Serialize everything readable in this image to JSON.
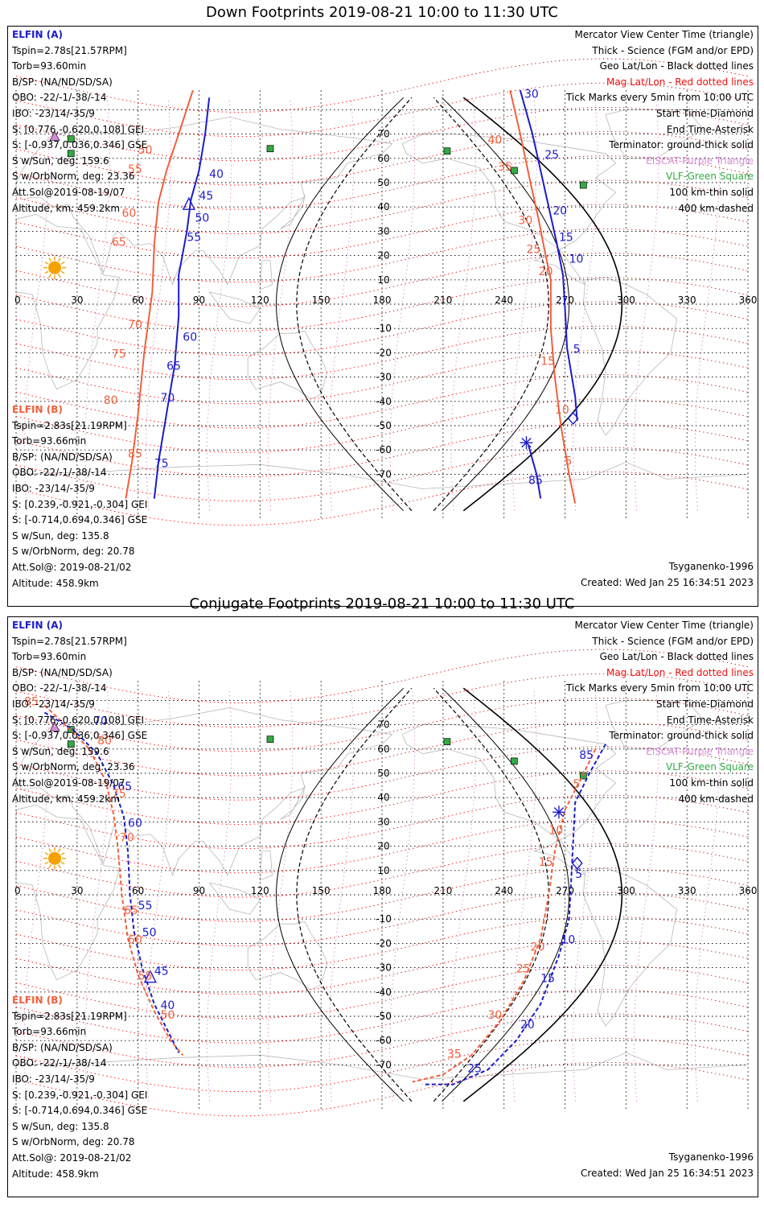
{
  "down": {
    "title": "Down Footprints 2019-08-21 10:00 to 11:30 UTC",
    "elfin_a": {
      "name": "ELFIN (A)",
      "lines": [
        "Tspin=2.78s[21.57RPM]",
        "Torb=93.60min",
        "B/SP: (NA/ND/SD/SA)",
        "OBO: -22/-1/-38/-14",
        "IBO: -23/14/-35/9",
        "S: [0.776,-0.620,0.108] GEI",
        "S: [-0.937,0.036,0.346] GSE",
        "S w/Sun, deg: 159.6",
        "S w/OrbNorm, deg: 23.36",
        "Att.Sol@2019-08-19/07",
        "Altitude, km: 459.2km"
      ]
    },
    "elfin_b": {
      "name": "ELFIN (B)",
      "lines": [
        "Tspin=2.83s[21.19RPM]",
        "Torb=93.66min",
        "B/SP: (NA/ND/SD/SA)",
        "OBO: -22/-1/-38/-14",
        "IBO: -23/14/-35/9",
        "S: [0.239,-0.921,-0.304] GEI",
        "S: [-0.714,0.694,0.346] GSE",
        "S w/Sun, deg: 135.8",
        "S w/OrbNorm, deg: 20.78",
        "Att.Sol@: 2019-08-21/02",
        "Altitude: 458.9km"
      ]
    },
    "footer_left": "Tsyganenko-1996",
    "footer_created": "Created: Wed Jan 25 16:34:51 2023",
    "blue_labels": [
      {
        "t": "40",
        "x": 95,
        "y": 52
      },
      {
        "t": "45",
        "x": 90,
        "y": 43
      },
      {
        "t": "50",
        "x": 88,
        "y": 34
      },
      {
        "t": "55",
        "x": 84,
        "y": 26
      },
      {
        "t": "60",
        "x": 82,
        "y": -15
      },
      {
        "t": "65",
        "x": 74,
        "y": -27
      },
      {
        "t": "70",
        "x": 71,
        "y": -40
      },
      {
        "t": "75",
        "x": 68,
        "y": -67
      },
      {
        "t": "85",
        "x": 252,
        "y": -74
      },
      {
        "t": "30",
        "x": 250,
        "y": 85
      },
      {
        "t": "25",
        "x": 260,
        "y": 60
      },
      {
        "t": "20",
        "x": 264,
        "y": 37
      },
      {
        "t": "15",
        "x": 267,
        "y": 26
      },
      {
        "t": "10",
        "x": 272,
        "y": 17
      },
      {
        "t": "5",
        "x": 274,
        "y": -20
      }
    ],
    "orange_labels": [
      {
        "t": "50",
        "x": 60,
        "y": 62
      },
      {
        "t": "55",
        "x": 55,
        "y": 54
      },
      {
        "t": "60",
        "x": 52,
        "y": 36
      },
      {
        "t": "65",
        "x": 47,
        "y": 24
      },
      {
        "t": "70",
        "x": 55,
        "y": -10
      },
      {
        "t": "75",
        "x": 47,
        "y": -22
      },
      {
        "t": "80",
        "x": 43,
        "y": -41
      },
      {
        "t": "85",
        "x": 55,
        "y": -63
      },
      {
        "t": "40",
        "x": 232,
        "y": 66
      },
      {
        "t": "35",
        "x": 237,
        "y": 55
      },
      {
        "t": "30",
        "x": 247,
        "y": 33
      },
      {
        "t": "25",
        "x": 251,
        "y": 21
      },
      {
        "t": "20",
        "x": 257,
        "y": 12
      },
      {
        "t": "15",
        "x": 258,
        "y": -25
      },
      {
        "t": "10",
        "x": 265,
        "y": -45
      },
      {
        "t": "5",
        "x": 270,
        "y": -66
      }
    ]
  },
  "conj": {
    "title": "Conjugate Footprints 2019-08-21 10:00 to 11:30 UTC",
    "elfin_a": {
      "name": "ELFIN (A)",
      "lines": [
        "Tspin=2.78s[21.57RPM]",
        "Torb=93.60min",
        "B/SP: (NA/ND/SD/SA)",
        "OBO: -22/-1/-38/-14",
        "IBO: -23/14/-35/9",
        "S: [0.776,-0.620,0.108] GEI",
        "S: [-0.937,0.036,0.346] GSE",
        "S w/Sun, deg: 159.6",
        "S w/OrbNorm, deg: 23.36",
        "Att.Sol@2019-08-19/07",
        "Altitude, km: 459.2km"
      ]
    },
    "elfin_b": {
      "name": "ELFIN (B)",
      "lines": [
        "Tspin=2.83s[21.19RPM]",
        "Torb=93.66min",
        "B/SP: (NA/ND/SD/SA)",
        "OBO: -22/-1/-38/-14",
        "IBO: -23/14/-35/9",
        "S: [0.239,-0.921,-0.304] GEI",
        "S: [-0.714,0.694,0.346] GSE",
        "S w/Sun, deg: 135.8",
        "S w/OrbNorm, deg: 20.78",
        "Att.Sol@: 2019-08-21/02",
        "Altitude: 458.9km"
      ]
    },
    "footer_left": "Tsyganenko-1996",
    "footer_created": "Created: Wed Jan 25 16:34:51 2023",
    "blue_labels": [
      {
        "t": "70",
        "x": 38,
        "y": 70
      },
      {
        "t": "65",
        "x": 50,
        "y": 43
      },
      {
        "t": "60",
        "x": 55,
        "y": 28
      },
      {
        "t": "55",
        "x": 60,
        "y": -6
      },
      {
        "t": "50",
        "x": 62,
        "y": -17
      },
      {
        "t": "45",
        "x": 68,
        "y": -33
      },
      {
        "t": "40",
        "x": 71,
        "y": -47
      },
      {
        "t": "85",
        "x": 277,
        "y": 56
      },
      {
        "t": "5",
        "x": 275,
        "y": 7
      },
      {
        "t": "10",
        "x": 268,
        "y": -20
      },
      {
        "t": "15",
        "x": 258,
        "y": -36
      },
      {
        "t": "20",
        "x": 248,
        "y": -55
      },
      {
        "t": "25",
        "x": 222,
        "y": -73
      }
    ],
    "orange_labels": [
      {
        "t": "85",
        "x": 4,
        "y": 78
      },
      {
        "t": "80",
        "x": 40,
        "y": 62
      },
      {
        "t": "75",
        "x": 47,
        "y": 40
      },
      {
        "t": "70",
        "x": 51,
        "y": 22
      },
      {
        "t": "65",
        "x": 53,
        "y": -8
      },
      {
        "t": "60",
        "x": 55,
        "y": -20
      },
      {
        "t": "55",
        "x": 60,
        "y": -35
      },
      {
        "t": "50",
        "x": 71,
        "y": -51
      },
      {
        "t": "5",
        "x": 274,
        "y": 44
      },
      {
        "t": "10",
        "x": 262,
        "y": 25
      },
      {
        "t": "15",
        "x": 257,
        "y": 12
      },
      {
        "t": "20",
        "x": 253,
        "y": -23
      },
      {
        "t": "25",
        "x": 246,
        "y": -32
      },
      {
        "t": "30",
        "x": 232,
        "y": -51
      },
      {
        "t": "35",
        "x": 212,
        "y": -67
      }
    ]
  },
  "legend": [
    {
      "t": "Mercator View Center Time (triangle)",
      "c": "black"
    },
    {
      "t": "Thick - Science (FGM and/or EPD)",
      "c": "black"
    },
    {
      "t": "Geo Lat/Lon - Black dotted lines",
      "c": "black"
    },
    {
      "t": "Mag Lat/Lon - Red dotted lines",
      "c": "red"
    },
    {
      "t": "Tick Marks every 5min from 10:00 UTC",
      "c": "black"
    },
    {
      "t": "Start Time-Diamond",
      "c": "black"
    },
    {
      "t": "End Time-Asterisk",
      "c": "black"
    },
    {
      "t": "Terminator: ground-thick solid",
      "c": "black"
    },
    {
      "t": "EISCAT-Purple Triangle",
      "c": "violet"
    },
    {
      "t": "VLF-Green Square",
      "c": "green"
    },
    {
      "t": "100 km-thin solid",
      "c": "black"
    },
    {
      "t": "400 km-dashed",
      "c": "black"
    }
  ],
  "lon_ticks": [
    "0",
    "30",
    "60",
    "90",
    "120",
    "150",
    "180",
    "210",
    "240",
    "270",
    "300",
    "330",
    "360"
  ],
  "lat_ticks": [
    "70",
    "60",
    "50",
    "40",
    "30",
    "20",
    "10",
    "0",
    "-10",
    "-20",
    "-30",
    "-40",
    "-50",
    "-60",
    "-70"
  ],
  "colors": {
    "elfin_a": "#1c1ccc",
    "elfin_b": "#f0603c",
    "mag_grid": "#ee1111",
    "geo_grid": "#000000",
    "sun": "#f5a100",
    "vlf": "#33aa44",
    "eiscat": "#d88ad8"
  },
  "sites": [
    {
      "lon": 27,
      "lat": 68
    },
    {
      "lon": 27,
      "lat": 62
    },
    {
      "lon": 125,
      "lat": 64
    },
    {
      "lon": 212,
      "lat": 63
    },
    {
      "lon": 245,
      "lat": 55
    },
    {
      "lon": 279,
      "lat": 49
    }
  ],
  "eiscat": [
    {
      "lon": 19,
      "lat": 69
    }
  ],
  "sun_position": {
    "lon": 19,
    "lat": 15
  },
  "icons": {
    "sun": "sun-icon",
    "site": "vlf-square-icon",
    "eiscat": "eiscat-triangle-icon"
  }
}
